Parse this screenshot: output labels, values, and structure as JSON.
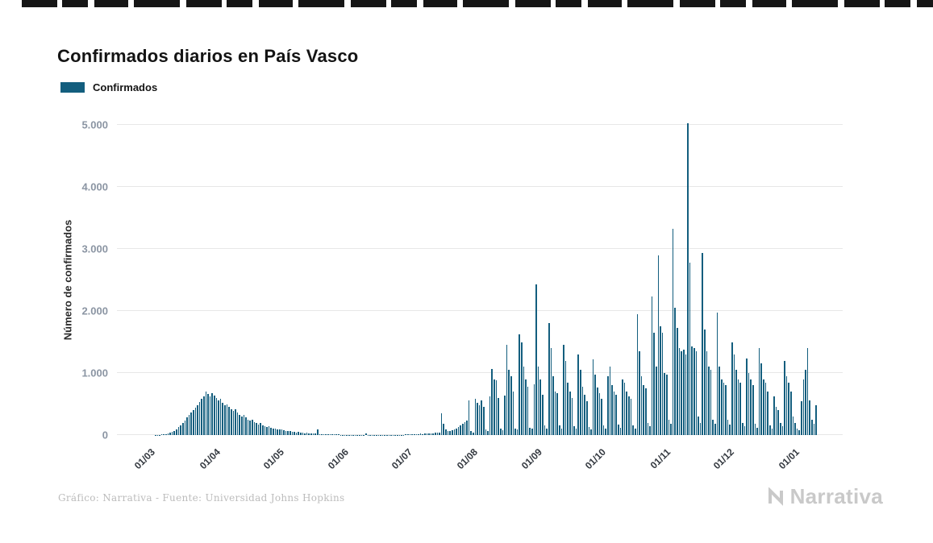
{
  "header": {
    "title": "Confirmados diarios en País Vasco"
  },
  "legend": {
    "label": "Confirmados",
    "color": "#135e7e"
  },
  "footer": {
    "credit": "Gráfico: Narrativa - Fuente: Universidad Johns Hopkins",
    "brand_text": "Narrativa"
  },
  "chart_data": {
    "type": "bar",
    "title": "Confirmados diarios en País Vasco",
    "xlabel": "",
    "ylabel": "Número de confirmados",
    "ylim": [
      0,
      5000
    ],
    "grid": "horizontal",
    "legend_position": "top-left",
    "bar_color": "#135e7e",
    "yticks": [
      {
        "value": 0,
        "label": "0"
      },
      {
        "value": 1000,
        "label": "1.000"
      },
      {
        "value": 2000,
        "label": "2.000"
      },
      {
        "value": 3000,
        "label": "3.000"
      },
      {
        "value": 4000,
        "label": "4.000"
      },
      {
        "value": 5000,
        "label": "5.000"
      }
    ],
    "xticks": [
      {
        "index": 15,
        "label": "01/03"
      },
      {
        "index": 46,
        "label": "01/04"
      },
      {
        "index": 76,
        "label": "01/05"
      },
      {
        "index": 107,
        "label": "01/06"
      },
      {
        "index": 137,
        "label": "01/07"
      },
      {
        "index": 168,
        "label": "01/08"
      },
      {
        "index": 199,
        "label": "01/09"
      },
      {
        "index": 229,
        "label": "01/10"
      },
      {
        "index": 260,
        "label": "01/11"
      },
      {
        "index": 290,
        "label": "01/12"
      },
      {
        "index": 321,
        "label": "01/01"
      }
    ],
    "series": [
      {
        "name": "Confirmados",
        "values": [
          0,
          0,
          0,
          0,
          0,
          0,
          0,
          0,
          0,
          0,
          0,
          0,
          0,
          0,
          0,
          0,
          0,
          1,
          2,
          3,
          5,
          8,
          12,
          18,
          25,
          35,
          50,
          70,
          95,
          125,
          160,
          200,
          240,
          280,
          320,
          360,
          400,
          440,
          480,
          530,
          580,
          630,
          700,
          660,
          620,
          680,
          640,
          600,
          560,
          590,
          520,
          480,
          500,
          460,
          420,
          390,
          410,
          360,
          330,
          300,
          320,
          280,
          250,
          230,
          250,
          210,
          190,
          175,
          190,
          160,
          145,
          130,
          145,
          120,
          110,
          100,
          95,
          85,
          90,
          75,
          70,
          65,
          70,
          55,
          50,
          45,
          50,
          40,
          35,
          32,
          35,
          28,
          25,
          22,
          25,
          90,
          18,
          15,
          14,
          16,
          12,
          10,
          9,
          10,
          8,
          7,
          6,
          5,
          4,
          6,
          3,
          4,
          5,
          3,
          2,
          4,
          3,
          2,
          25,
          2,
          4,
          3,
          2,
          3,
          4,
          3,
          2,
          3,
          2,
          4,
          3,
          2,
          3,
          4,
          5,
          4,
          6,
          12,
          10,
          14,
          12,
          16,
          15,
          18,
          20,
          18,
          22,
          25,
          28,
          32,
          30,
          36,
          40,
          45,
          355,
          180,
          90,
          70,
          65,
          80,
          95,
          110,
          130,
          155,
          180,
          210,
          240,
          560,
          60,
          40,
          580,
          520,
          480,
          560,
          450,
          90,
          70,
          620,
          1060,
          900,
          880,
          600,
          100,
          80,
          640,
          1450,
          1050,
          950,
          700,
          110,
          90,
          1630,
          1500,
          1100,
          900,
          780,
          120,
          100,
          820,
          2430,
          1100,
          900,
          650,
          150,
          100,
          1800,
          1400,
          950,
          700,
          680,
          160,
          110,
          1450,
          1200,
          850,
          700,
          600,
          140,
          100,
          1300,
          1050,
          780,
          650,
          550,
          130,
          90,
          1220,
          980,
          760,
          680,
          580,
          150,
          100,
          950,
          1100,
          800,
          700,
          650,
          170,
          120,
          900,
          850,
          700,
          620,
          580,
          160,
          110,
          1950,
          1350,
          950,
          800,
          750,
          200,
          140,
          2230,
          1650,
          1100,
          2890,
          1750,
          1650,
          1000,
          980,
          250,
          180,
          3320,
          2050,
          1730,
          1400,
          1350,
          1380,
          1300,
          5030,
          2780,
          1430,
          1400,
          1350,
          300,
          200,
          2930,
          1700,
          1350,
          1100,
          1050,
          250,
          180,
          1980,
          1100,
          900,
          850,
          800,
          250,
          170,
          1500,
          1300,
          1050,
          900,
          850,
          200,
          140,
          1240,
          1000,
          900,
          800,
          180,
          120,
          1400,
          1150,
          900,
          850,
          700,
          150,
          100,
          620,
          450,
          400,
          200,
          140,
          1200,
          950,
          850,
          700,
          300,
          200,
          100,
          80,
          550,
          900,
          1050,
          1400,
          560,
          250,
          180,
          480,
          0,
          0,
          0,
          0,
          0,
          0,
          0,
          0,
          0,
          0,
          0,
          0
        ]
      }
    ]
  }
}
